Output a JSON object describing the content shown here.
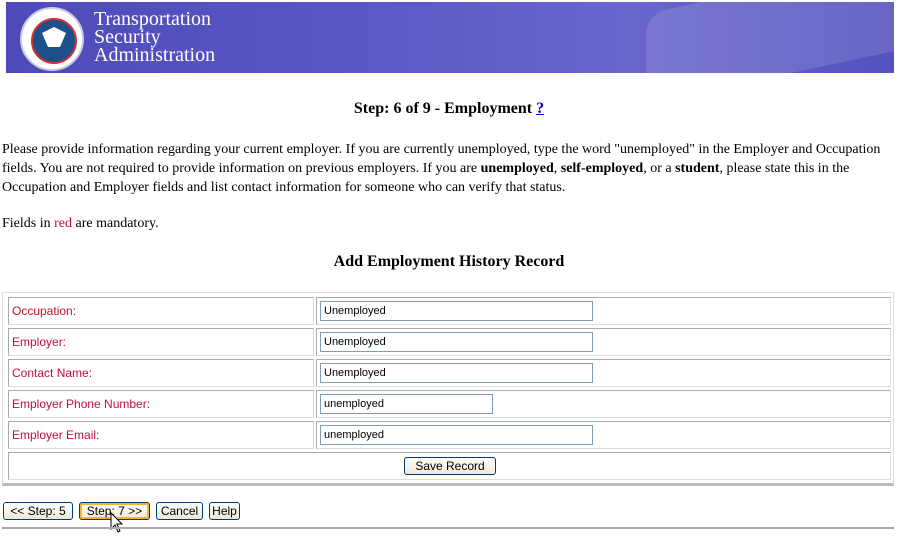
{
  "header": {
    "org_lines": [
      "Transportation",
      "Security",
      "Administration"
    ],
    "seal_text": "U.S. Department of Homeland Security"
  },
  "page": {
    "title": "Step: 6 of 9 - Employment",
    "help_link": "?",
    "intro": [
      "Please provide information regarding your current employer. If you are currently unemployed, type the word \"unemployed\" in the Employer and Occupation fields. You are not required to provide information on previous employers. If you are ",
      "unemployed",
      ", ",
      "self-employed",
      ", or a ",
      "student",
      ", please state this in the Occupation and Employer fields and list contact information for someone who can verify that status."
    ],
    "mandatory": [
      "Fields in ",
      "red",
      " are mandatory."
    ],
    "section_title": "Add Employment History Record"
  },
  "form": {
    "fields": [
      {
        "label": "Occupation:",
        "value": "Unemployed"
      },
      {
        "label": "Employer:",
        "value": "Unemployed"
      },
      {
        "label": "Contact Name:",
        "value": "Unemployed"
      },
      {
        "label": "Employer Phone Number:",
        "value": "unemployed"
      },
      {
        "label": "Employer Email:",
        "value": "unemployed"
      }
    ],
    "save_label": "Save Record"
  },
  "nav": {
    "prev": "<< Step: 5",
    "next": "Step: 7 >>",
    "cancel": "Cancel",
    "help": "Help"
  },
  "colors": {
    "mandatory": "#c0103a",
    "banner": "#5551bf"
  }
}
